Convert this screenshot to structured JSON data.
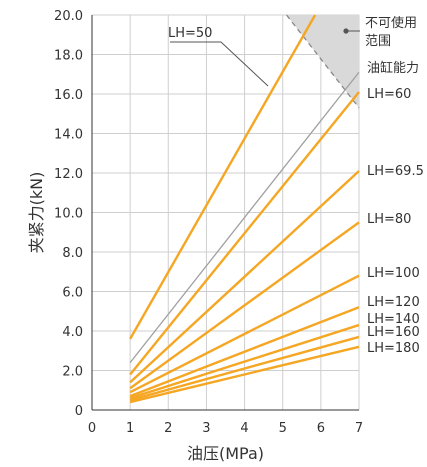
{
  "chart_data": {
    "type": "line",
    "xlabel": "油压(MPa)",
    "ylabel": "夹紧力(kN)",
    "xlim": [
      0,
      7
    ],
    "ylim": [
      0,
      20
    ],
    "x_ticks": [
      "0",
      "1",
      "2",
      "3",
      "4",
      "5",
      "6",
      "7"
    ],
    "y_ticks": [
      "0",
      "2.0",
      "4.0",
      "6.0",
      "8.0",
      "10.0",
      "12.0",
      "14.0",
      "16.0",
      "18.0",
      "20.0"
    ],
    "grid": true,
    "series": [
      {
        "name": "LH=50",
        "x": [
          1,
          5.85
        ],
        "y": [
          3.6,
          20.0
        ],
        "color": "#f5a623",
        "label_position": "callout"
      },
      {
        "name": "LH=60",
        "x": [
          1,
          7
        ],
        "y": [
          1.8,
          16.1
        ],
        "color": "#f5a623",
        "label_position": "right"
      },
      {
        "name": "LH=69.5",
        "x": [
          1,
          7
        ],
        "y": [
          1.4,
          12.1
        ],
        "color": "#f5a623",
        "label_position": "right"
      },
      {
        "name": "LH=80",
        "x": [
          1,
          7
        ],
        "y": [
          1.1,
          9.5
        ],
        "color": "#f5a623",
        "label_position": "right"
      },
      {
        "name": "LH=100",
        "x": [
          1,
          7
        ],
        "y": [
          0.9,
          6.8
        ],
        "color": "#f5a623",
        "label_position": "right"
      },
      {
        "name": "LH=120",
        "x": [
          1,
          7
        ],
        "y": [
          0.7,
          5.2
        ],
        "color": "#f5a623",
        "label_position": "right"
      },
      {
        "name": "LH=140",
        "x": [
          1,
          7
        ],
        "y": [
          0.6,
          4.3
        ],
        "color": "#f5a623",
        "label_position": "right"
      },
      {
        "name": "LH=160",
        "x": [
          1,
          7
        ],
        "y": [
          0.5,
          3.7
        ],
        "color": "#f5a623",
        "label_position": "right"
      },
      {
        "name": "LH=180",
        "x": [
          1,
          7
        ],
        "y": [
          0.4,
          3.2
        ],
        "color": "#f5a623",
        "label_position": "right"
      },
      {
        "name": "油缸能力",
        "x": [
          1,
          7
        ],
        "y": [
          2.4,
          17.1
        ],
        "color": "#a0a0a0",
        "label_position": "right"
      }
    ],
    "unusable_region": {
      "label": "不可使用范围",
      "color": "#d9d9d9",
      "boundary_x": [
        5.1,
        7
      ],
      "boundary_y": [
        20.0,
        15.3
      ]
    }
  }
}
